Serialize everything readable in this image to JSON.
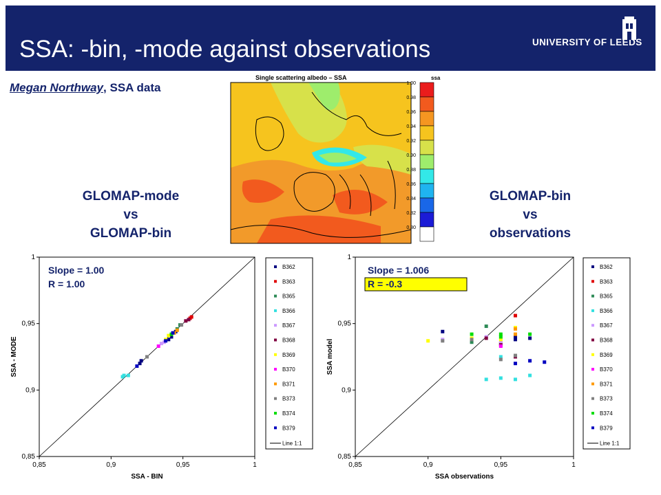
{
  "header": {
    "title": "SSA: -bin, -mode against observations",
    "logo_text": "UNIVERSITY OF LEEDS"
  },
  "credit": {
    "name": "Megan Northway",
    "rest": ", SSA data"
  },
  "captions": {
    "left": [
      "GLOMAP-mode",
      "vs",
      "GLOMAP-bin"
    ],
    "right": [
      "GLOMAP-bin",
      "vs",
      "observations"
    ]
  },
  "map": {
    "title": "Single scattering albedo  –  SSA",
    "colorbar_label": "ssa",
    "colorbar_ticks": [
      "1.00",
      "0.98",
      "0.96",
      "0.94",
      "0.92",
      "0.90",
      "0.88",
      "0.86",
      "0.84",
      "0.82",
      "0.80"
    ],
    "colorbar_colors": [
      "#ea1c1c",
      "#f25a1e",
      "#f59621",
      "#f6c41e",
      "#d7e14a",
      "#9eed6c",
      "#33e8e8",
      "#1fb4f0",
      "#1967e8",
      "#1b1bd6",
      "#ffffff"
    ]
  },
  "chart_data": [
    {
      "type": "scatter",
      "title": "",
      "xlabel": "SSA - BIN",
      "ylabel": "SSA - MODE",
      "xlim": [
        0.85,
        1
      ],
      "ylim": [
        0.85,
        1
      ],
      "x_ticks": [
        "0,85",
        "0,9",
        "0,95",
        "1"
      ],
      "y_ticks": [
        "0,85",
        "0,9",
        "0,95",
        "1"
      ],
      "annotation_lines": [
        "Slope = 1.00",
        "R       = 1.00"
      ],
      "legend_position": "right",
      "reference_line": "Line 1:1",
      "series": [
        {
          "name": "B362",
          "color": "#000080",
          "points": [
            [
              0.92,
              0.92
            ],
            [
              0.921,
              0.922
            ],
            [
              0.94,
              0.938
            ],
            [
              0.942,
              0.94
            ],
            [
              0.945,
              0.944
            ]
          ]
        },
        {
          "name": "B363",
          "color": "#e00000",
          "points": [
            [
              0.955,
              0.954
            ],
            [
              0.956,
              0.955
            ]
          ]
        },
        {
          "name": "B365",
          "color": "#2e8b57",
          "points": [
            [
              0.946,
              0.946
            ],
            [
              0.948,
              0.949
            ]
          ]
        },
        {
          "name": "B366",
          "color": "#33e0e0",
          "points": [
            [
              0.908,
              0.91
            ],
            [
              0.909,
              0.911
            ],
            [
              0.912,
              0.911
            ]
          ]
        },
        {
          "name": "B367",
          "color": "#cc99ff",
          "points": [
            [
              0.935,
              0.935
            ],
            [
              0.937,
              0.936
            ]
          ]
        },
        {
          "name": "B368",
          "color": "#800040",
          "points": [
            [
              0.952,
              0.952
            ],
            [
              0.954,
              0.953
            ]
          ]
        },
        {
          "name": "B369",
          "color": "#ffff00",
          "points": [
            [
              0.938,
              0.938
            ],
            [
              0.94,
              0.941
            ]
          ]
        },
        {
          "name": "B370",
          "color": "#ff00ff",
          "points": [
            [
              0.933,
              0.933
            ]
          ]
        },
        {
          "name": "B371",
          "color": "#ff9900",
          "points": [
            [
              0.944,
              0.943
            ],
            [
              0.946,
              0.945
            ]
          ]
        },
        {
          "name": "B373",
          "color": "#808080",
          "points": [
            [
              0.925,
              0.925
            ],
            [
              0.949,
              0.949
            ]
          ]
        },
        {
          "name": "B374",
          "color": "#00dd00",
          "points": [
            [
              0.942,
              0.942
            ]
          ]
        },
        {
          "name": "B379",
          "color": "#0000c0",
          "points": [
            [
              0.918,
              0.918
            ],
            [
              0.938,
              0.937
            ],
            [
              0.943,
              0.943
            ]
          ]
        }
      ]
    },
    {
      "type": "scatter",
      "title": "",
      "xlabel": "SSA observations",
      "ylabel": "SSA model",
      "xlim": [
        0.85,
        1
      ],
      "ylim": [
        0.85,
        1
      ],
      "x_ticks": [
        "0,85",
        "0,9",
        "0,95",
        "1"
      ],
      "y_ticks": [
        "0,85",
        "0,9",
        "0,95",
        "1"
      ],
      "annotation_lines": [
        "Slope = 1.006",
        "R       = -0.3"
      ],
      "legend_position": "right",
      "reference_line": "Line 1:1",
      "series": [
        {
          "name": "B362",
          "color": "#000080",
          "points": [
            [
              0.91,
              0.944
            ],
            [
              0.96,
              0.938
            ],
            [
              0.96,
              0.94
            ],
            [
              0.97,
              0.939
            ]
          ]
        },
        {
          "name": "B363",
          "color": "#e00000",
          "points": [
            [
              0.96,
              0.956
            ]
          ]
        },
        {
          "name": "B365",
          "color": "#2e8b57",
          "points": [
            [
              0.94,
              0.948
            ],
            [
              0.93,
              0.936
            ],
            [
              0.95,
              0.935
            ]
          ]
        },
        {
          "name": "B366",
          "color": "#33e0e0",
          "points": [
            [
              0.94,
              0.908
            ],
            [
              0.95,
              0.909
            ],
            [
              0.96,
              0.908
            ],
            [
              0.97,
              0.911
            ],
            [
              0.95,
              0.925
            ]
          ]
        },
        {
          "name": "B367",
          "color": "#cc99ff",
          "points": [
            [
              0.91,
              0.938
            ],
            [
              0.94,
              0.94
            ],
            [
              0.95,
              0.936
            ]
          ]
        },
        {
          "name": "B368",
          "color": "#800040",
          "points": [
            [
              0.94,
              0.939
            ],
            [
              0.95,
              0.934
            ],
            [
              0.96,
              0.925
            ]
          ]
        },
        {
          "name": "B369",
          "color": "#ffff00",
          "points": [
            [
              0.9,
              0.937
            ],
            [
              0.93,
              0.939
            ],
            [
              0.95,
              0.938
            ],
            [
              0.96,
              0.947
            ]
          ]
        },
        {
          "name": "B370",
          "color": "#ff00ff",
          "points": [
            [
              0.95,
              0.933
            ]
          ]
        },
        {
          "name": "B371",
          "color": "#ff9900",
          "points": [
            [
              0.96,
              0.946
            ],
            [
              0.96,
              0.942
            ]
          ]
        },
        {
          "name": "B373",
          "color": "#808080",
          "points": [
            [
              0.91,
              0.937
            ],
            [
              0.93,
              0.938
            ],
            [
              0.95,
              0.923
            ],
            [
              0.96,
              0.926
            ]
          ]
        },
        {
          "name": "B374",
          "color": "#00dd00",
          "points": [
            [
              0.93,
              0.942
            ],
            [
              0.95,
              0.942
            ],
            [
              0.95,
              0.94
            ],
            [
              0.97,
              0.942
            ]
          ]
        },
        {
          "name": "B379",
          "color": "#0000c0",
          "points": [
            [
              0.96,
              0.92
            ],
            [
              0.97,
              0.922
            ],
            [
              0.98,
              0.921
            ]
          ]
        }
      ]
    }
  ]
}
